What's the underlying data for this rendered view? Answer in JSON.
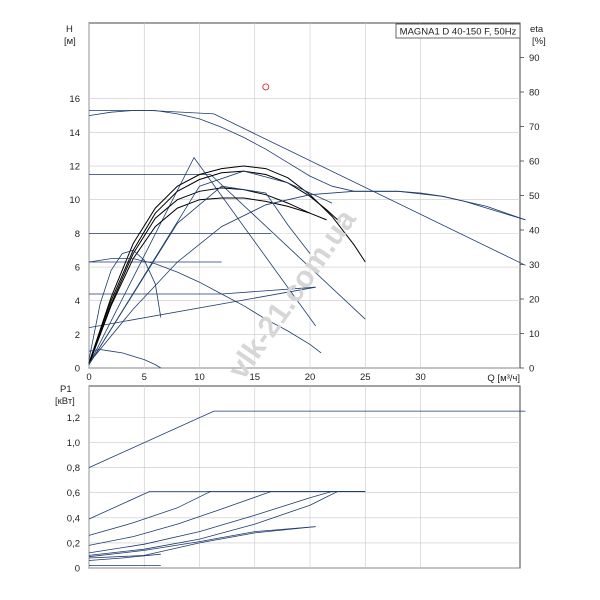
{
  "chart_data": [
    {
      "type": "line",
      "title": "MAGNA1 D 40-150 F, 50Hz",
      "ylabel": "H",
      "yunit": "[м]",
      "y2label": "eta",
      "y2unit": "[%]",
      "xlabel": "Q [м³/ч]",
      "xlim": [
        0,
        39
      ],
      "ylim": [
        0,
        20.5
      ],
      "y2lim": [
        0,
        100
      ],
      "xticks": [
        0,
        5,
        10,
        15,
        20,
        25,
        30
      ],
      "yticks": [
        0,
        2,
        4,
        6,
        8,
        10,
        12,
        14,
        16
      ],
      "y2ticks": [
        0,
        10,
        20,
        30,
        40,
        50,
        60,
        70,
        80,
        90
      ],
      "grid": true,
      "marker": {
        "x": 16,
        "y": 16.7
      },
      "series": [
        {
          "color": "#1d3b6e",
          "x": [
            0,
            3.5,
            5.5,
            11.3,
            39.5
          ],
          "values": [
            15.3,
            15.3,
            15.3,
            15.1,
            6.1
          ]
        },
        {
          "color": "#1d3b6e",
          "x": [
            0,
            11,
            25
          ],
          "values": [
            11.5,
            11.5,
            2.9
          ]
        },
        {
          "color": "#1d3b6e",
          "x": [
            0,
            16.5
          ],
          "values": [
            8,
            8
          ]
        },
        {
          "color": "#1d3b6e",
          "x": [
            0,
            12
          ],
          "values": [
            6.3,
            6.3
          ]
        },
        {
          "color": "#1d3b6e",
          "x": [
            0,
            12,
            20.5
          ],
          "values": [
            4.4,
            4.4,
            4.8
          ]
        },
        {
          "color": "#1d3b6e",
          "x": [
            0,
            20.5
          ],
          "values": [
            2.4,
            4.8
          ]
        },
        {
          "color": "#1d3b6e",
          "x": [
            0,
            9.5,
            20.5
          ],
          "values": [
            0.2,
            12.5,
            2.5
          ]
        },
        {
          "color": "#000000",
          "x": [
            0,
            2,
            4,
            6,
            8,
            10,
            12,
            14,
            16,
            18,
            20,
            22,
            24,
            25
          ],
          "values": [
            0.3,
            4.2,
            7.4,
            9.5,
            10.8,
            11.5,
            11.85,
            12.0,
            11.85,
            11.3,
            10.3,
            9.0,
            7.3,
            6.3
          ]
        },
        {
          "color": "#000000",
          "x": [
            0,
            2,
            4,
            6,
            8,
            10,
            12,
            14,
            16,
            18,
            20,
            21.5,
            22.5
          ],
          "values": [
            0.3,
            4.0,
            7.0,
            9.2,
            10.5,
            11.2,
            11.6,
            11.7,
            11.5,
            11.0,
            10.2,
            9.4,
            8.8
          ]
        },
        {
          "color": "#000000",
          "x": [
            0,
            2,
            4,
            6,
            8,
            10,
            12,
            14,
            16,
            18,
            20,
            21.5
          ],
          "values": [
            0.2,
            3.8,
            6.8,
            8.9,
            10.0,
            10.5,
            10.7,
            10.6,
            10.3,
            9.8,
            9.2,
            8.8
          ]
        },
        {
          "color": "#000000",
          "x": [
            0,
            2,
            4,
            6,
            8,
            10,
            12,
            14,
            16,
            18,
            20
          ],
          "values": [
            0.2,
            3.7,
            6.5,
            8.4,
            9.5,
            10.0,
            10.1,
            10.1,
            9.9,
            9.6,
            9.2
          ]
        },
        {
          "color": "#1d3b6e",
          "x": [
            0,
            2,
            4,
            6,
            8,
            10,
            12,
            14,
            16,
            18,
            20,
            22,
            24,
            26,
            28,
            30,
            32,
            34,
            36,
            38,
            39.5
          ],
          "values": [
            15.0,
            15.2,
            15.3,
            15.3,
            15.1,
            14.8,
            14.3,
            13.7,
            13.0,
            12.2,
            11.4,
            10.8,
            10.5,
            10.5,
            10.5,
            10.4,
            10.2,
            9.9,
            9.5,
            9.1,
            8.8
          ]
        },
        {
          "color": "#1d3b6e",
          "x": [
            0,
            4,
            8,
            12,
            16,
            20,
            24,
            28,
            32,
            36,
            39.5
          ],
          "values": [
            0.3,
            3.5,
            6.3,
            8.4,
            9.7,
            10.3,
            10.5,
            10.5,
            10.2,
            9.6,
            8.8
          ]
        },
        {
          "color": "#1d3b6e",
          "x": [
            0,
            2,
            4,
            6,
            8,
            10,
            12,
            14,
            16,
            18,
            20,
            21
          ],
          "values": [
            6.3,
            6.5,
            6.5,
            6.2,
            5.7,
            5.1,
            4.4,
            3.7,
            2.9,
            2.2,
            1.4,
            0.9
          ]
        },
        {
          "color": "#1d3b6e",
          "x": [
            0,
            1,
            2,
            3,
            4,
            5,
            6,
            6.5
          ],
          "values": [
            0.5,
            3.8,
            5.8,
            6.8,
            7.0,
            6.4,
            5.0,
            3.0
          ]
        },
        {
          "color": "#1d3b6e",
          "x": [
            0,
            1,
            2,
            3,
            4,
            5,
            6,
            6.5
          ],
          "values": [
            1.0,
            1.1,
            1.0,
            0.9,
            0.7,
            0.5,
            0.2,
            0.0
          ]
        },
        {
          "color": "#1d3b6e",
          "x": [
            0,
            8,
            12,
            16,
            18,
            20
          ],
          "values": [
            0.2,
            8.6,
            10.8,
            10.4,
            8.5,
            6.8
          ]
        },
        {
          "color": "#1d3b6e",
          "x": [
            0,
            10,
            14,
            18,
            22
          ],
          "values": [
            0.2,
            10.8,
            11.7,
            11.0,
            9.8
          ]
        }
      ]
    },
    {
      "type": "line",
      "ylabel": "P1",
      "yunit": "[кВт]",
      "xlim": [
        0,
        39
      ],
      "ylim": [
        0,
        1.45
      ],
      "yticks": [
        "0",
        "0,2",
        "0,4",
        "0,6",
        "0,8",
        "1,0",
        "1,2"
      ],
      "ytick_values": [
        0,
        0.2,
        0.4,
        0.6,
        0.8,
        1.0,
        1.2
      ],
      "grid": true,
      "series": [
        {
          "color": "#1d3b6e",
          "x": [
            0,
            11.3,
            39.5
          ],
          "values": [
            0.8,
            1.25,
            1.25
          ]
        },
        {
          "color": "#1d3b6e",
          "x": [
            0,
            5.5,
            25
          ],
          "values": [
            0.39,
            0.61,
            0.61
          ]
        },
        {
          "color": "#1d3b6e",
          "x": [
            0,
            4,
            8,
            11,
            25
          ],
          "values": [
            0.26,
            0.36,
            0.48,
            0.61,
            0.61
          ]
        },
        {
          "color": "#1d3b6e",
          "x": [
            0,
            4,
            8,
            12,
            16.5,
            25
          ],
          "values": [
            0.18,
            0.25,
            0.35,
            0.47,
            0.61,
            0.61
          ]
        },
        {
          "color": "#1d3b6e",
          "x": [
            0,
            5,
            10,
            15,
            20,
            22,
            25
          ],
          "values": [
            0.12,
            0.19,
            0.29,
            0.42,
            0.56,
            0.61,
            0.61
          ]
        },
        {
          "color": "#1d3b6e",
          "x": [
            0,
            5,
            10,
            15,
            20,
            22.5,
            25
          ],
          "values": [
            0.1,
            0.15,
            0.23,
            0.35,
            0.5,
            0.61,
            0.61
          ]
        },
        {
          "color": "#1d3b6e",
          "x": [
            0,
            5,
            10,
            15,
            20.5
          ],
          "values": [
            0.09,
            0.14,
            0.21,
            0.29,
            0.33
          ]
        },
        {
          "color": "#1d3b6e",
          "x": [
            0,
            5,
            10,
            15,
            20.5
          ],
          "values": [
            0.08,
            0.1,
            0.2,
            0.28,
            0.33
          ]
        },
        {
          "color": "#1d3b6e",
          "x": [
            0,
            3,
            6.5
          ],
          "values": [
            0.06,
            0.08,
            0.11
          ]
        },
        {
          "color": "#1d3b6e",
          "x": [
            0,
            3,
            6.5
          ],
          "values": [
            0.02,
            0.02,
            0.02
          ]
        }
      ]
    }
  ]
}
